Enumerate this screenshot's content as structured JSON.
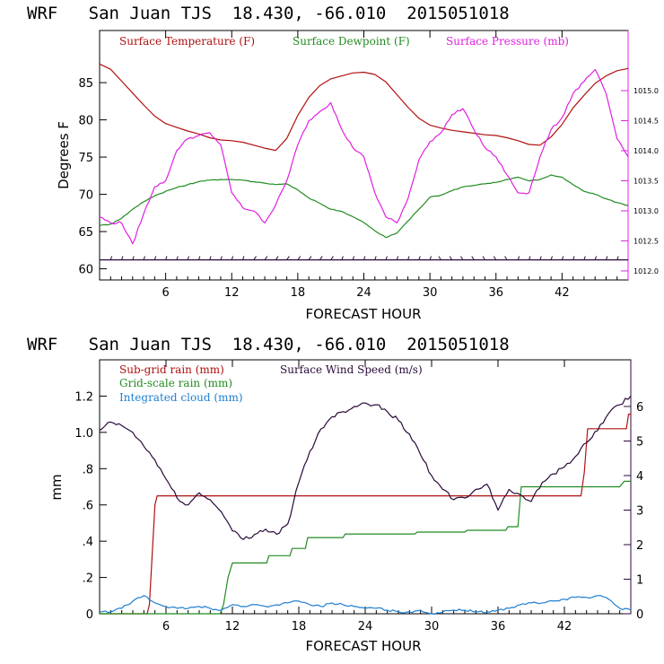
{
  "chart_data": [
    {
      "type": "line",
      "title": "WRF   San Juan TJS  18.430, -66.010  2015051018",
      "xlabel": "FORECAST HOUR",
      "ylabel": "Degrees F",
      "xlim": [
        0,
        48
      ],
      "xticks": [
        6,
        12,
        18,
        24,
        30,
        36,
        42
      ],
      "ylim": [
        58.5,
        92
      ],
      "yticks": [
        60,
        65,
        70,
        75,
        80,
        85
      ],
      "y2lim": [
        1011.85,
        1016.0
      ],
      "y2ticks": [
        "1012.0",
        "1012.5",
        "1013.0",
        "1013.5",
        "1014.0",
        "1014.5",
        "1015.0"
      ],
      "legend_placement": "top",
      "series": [
        {
          "name": "Surface Temperature (F)",
          "color": "#b01010",
          "axis": "left",
          "x": [
            0,
            1,
            2,
            3,
            4,
            5,
            6,
            7,
            8,
            9,
            10,
            11,
            12,
            13,
            14,
            15,
            16,
            17,
            18,
            19,
            20,
            21,
            22,
            23,
            24,
            25,
            26,
            27,
            28,
            29,
            30,
            31,
            32,
            33,
            34,
            35,
            36,
            37,
            38,
            39,
            40,
            41,
            42,
            43,
            44,
            45,
            46,
            47,
            48
          ],
          "y": [
            87.5,
            86.8,
            85.2,
            83.6,
            82.0,
            80.5,
            79.5,
            79.0,
            78.5,
            78.1,
            77.6,
            77.3,
            77.2,
            77.0,
            76.6,
            76.2,
            75.9,
            77.5,
            80.6,
            83.0,
            84.6,
            85.5,
            85.9,
            86.3,
            86.4,
            86.1,
            85.1,
            83.4,
            81.7,
            80.2,
            79.3,
            78.9,
            78.6,
            78.4,
            78.2,
            78.0,
            77.9,
            77.6,
            77.2,
            76.7,
            76.6,
            77.7,
            79.4,
            81.6,
            83.3,
            84.9,
            85.9,
            86.6,
            86.9
          ]
        },
        {
          "name": "Surface Dewpoint (F)",
          "color": "#228b22",
          "axis": "left",
          "x": [
            0,
            1,
            2,
            3,
            4,
            5,
            6,
            7,
            8,
            9,
            10,
            11,
            12,
            13,
            14,
            15,
            16,
            17,
            18,
            19,
            20,
            21,
            22,
            23,
            24,
            25,
            26,
            27,
            28,
            29,
            30,
            31,
            32,
            33,
            34,
            35,
            36,
            37,
            38,
            39,
            40,
            41,
            42,
            43,
            44,
            45,
            46,
            47,
            48
          ],
          "y": [
            65.8,
            66.0,
            66.8,
            68.0,
            69.0,
            69.8,
            70.4,
            70.9,
            71.3,
            71.7,
            71.9,
            72.0,
            72.0,
            71.9,
            71.7,
            71.5,
            71.3,
            71.4,
            70.6,
            69.5,
            68.8,
            68.0,
            67.7,
            67.0,
            66.2,
            65.1,
            64.2,
            64.8,
            66.4,
            68.0,
            69.6,
            69.9,
            70.5,
            71.0,
            71.2,
            71.4,
            71.6,
            72.0,
            72.3,
            71.8,
            72.0,
            72.6,
            72.3,
            71.3,
            70.4,
            70.0,
            69.4,
            68.9,
            68.5
          ]
        },
        {
          "name": "Surface Pressure (mb)",
          "color": "#e020e0",
          "axis": "right",
          "x": [
            0,
            1,
            2,
            3,
            4,
            5,
            6,
            7,
            8,
            9,
            10,
            11,
            12,
            13,
            14,
            15,
            16,
            17,
            18,
            19,
            20,
            21,
            22,
            23,
            24,
            25,
            26,
            27,
            28,
            29,
            30,
            31,
            32,
            33,
            34,
            35,
            36,
            37,
            38,
            39,
            40,
            41,
            42,
            43,
            44,
            45,
            46,
            47,
            48
          ],
          "y": [
            1012.9,
            1012.8,
            1012.8,
            1012.45,
            1012.95,
            1013.4,
            1013.5,
            1014.0,
            1014.2,
            1014.25,
            1014.3,
            1014.1,
            1013.3,
            1013.05,
            1013.0,
            1012.8,
            1013.1,
            1013.5,
            1014.1,
            1014.5,
            1014.65,
            1014.8,
            1014.35,
            1014.05,
            1013.9,
            1013.3,
            1012.9,
            1012.8,
            1013.2,
            1013.85,
            1014.15,
            1014.3,
            1014.6,
            1014.7,
            1014.35,
            1014.05,
            1013.9,
            1013.6,
            1013.3,
            1013.3,
            1013.9,
            1014.35,
            1014.55,
            1014.95,
            1015.15,
            1015.35,
            1014.95,
            1014.2,
            1013.9
          ]
        },
        {
          "name": "wind barbs",
          "color": "#2a0a3a",
          "axis": "left",
          "x": [
            0,
            48
          ],
          "y": [
            61.2,
            61.2
          ]
        }
      ]
    },
    {
      "type": "line",
      "title": "WRF   San Juan TJS  18.430, -66.010  2015051018",
      "xlabel": "FORECAST HOUR",
      "ylabel": "mm",
      "xlim": [
        0,
        48
      ],
      "xticks": [
        6,
        12,
        18,
        24,
        30,
        36,
        42
      ],
      "ylim": [
        0,
        1.4
      ],
      "yticks": [
        "0",
        ".2",
        ".4",
        ".6",
        ".8",
        "1.0",
        "1.2"
      ],
      "y2lim": [
        0,
        7.35
      ],
      "y2ticks": [
        "0",
        "1",
        "2",
        "3",
        "4",
        "5",
        "6"
      ],
      "legend_placement": "top-left",
      "series": [
        {
          "name": "Sub-grid rain (mm)",
          "color": "#b01010",
          "axis": "left",
          "x": [
            0,
            4.3,
            4.5,
            5.0,
            5.2,
            43.5,
            43.8,
            44.1,
            47.6,
            47.8,
            48
          ],
          "y": [
            0,
            0,
            0.05,
            0.6,
            0.65,
            0.65,
            0.78,
            1.02,
            1.02,
            1.1,
            1.1
          ]
        },
        {
          "name": "Grid-scale rain (mm)",
          "color": "#228b22",
          "axis": "left",
          "x": [
            0,
            10.9,
            11.2,
            11.6,
            12.0,
            15.1,
            15.3,
            17.2,
            17.4,
            18.6,
            18.8,
            22.0,
            22.2,
            28.5,
            28.7,
            33.0,
            33.2,
            36.7,
            36.9,
            37.8,
            38.1,
            47.0,
            47.4,
            48
          ],
          "y": [
            0,
            0,
            0.05,
            0.2,
            0.28,
            0.28,
            0.32,
            0.32,
            0.36,
            0.36,
            0.42,
            0.42,
            0.44,
            0.44,
            0.45,
            0.45,
            0.46,
            0.46,
            0.48,
            0.48,
            0.7,
            0.7,
            0.73,
            0.73
          ]
        },
        {
          "name": "Integrated cloud (mm)",
          "color": "#1f7fd0",
          "axis": "left",
          "x": [
            0,
            1,
            2,
            3,
            4,
            5,
            6,
            7,
            8,
            9,
            10,
            11,
            12,
            13,
            14,
            15,
            16,
            17,
            18,
            19,
            20,
            21,
            22,
            23,
            24,
            25,
            26,
            27,
            28,
            29,
            30,
            31,
            32,
            33,
            34,
            35,
            36,
            37,
            38,
            39,
            40,
            41,
            42,
            43,
            44,
            45,
            46,
            47,
            48
          ],
          "y": [
            0.01,
            0.01,
            0.03,
            0.07,
            0.1,
            0.06,
            0.04,
            0.03,
            0.03,
            0.04,
            0.03,
            0.02,
            0.05,
            0.04,
            0.05,
            0.04,
            0.05,
            0.06,
            0.07,
            0.05,
            0.04,
            0.06,
            0.05,
            0.04,
            0.03,
            0.03,
            0.02,
            0.01,
            0.01,
            0.02,
            0.0,
            0.01,
            0.02,
            0.02,
            0.01,
            0.01,
            0.02,
            0.03,
            0.05,
            0.06,
            0.06,
            0.07,
            0.08,
            0.09,
            0.09,
            0.1,
            0.08,
            0.03,
            0.02
          ]
        },
        {
          "name": "Surface Wind Speed (m/s)",
          "color": "#2a0a3a",
          "axis": "right",
          "x": [
            0,
            1,
            2,
            3,
            4,
            5,
            6,
            7,
            8,
            9,
            10,
            11,
            12,
            13,
            14,
            15,
            16,
            17,
            18,
            19,
            20,
            21,
            22,
            23,
            24,
            25,
            26,
            27,
            28,
            29,
            30,
            31,
            32,
            33,
            34,
            35,
            36,
            37,
            38,
            39,
            40,
            41,
            42,
            43,
            44,
            45,
            46,
            47,
            48
          ],
          "y": [
            5.3,
            5.55,
            5.45,
            5.25,
            4.85,
            4.45,
            3.9,
            3.35,
            3.15,
            3.5,
            3.3,
            2.95,
            2.4,
            2.15,
            2.3,
            2.45,
            2.3,
            2.6,
            3.8,
            4.7,
            5.35,
            5.7,
            5.85,
            6.0,
            6.1,
            6.05,
            5.85,
            5.6,
            5.2,
            4.6,
            4.0,
            3.6,
            3.3,
            3.35,
            3.6,
            3.75,
            3.0,
            3.6,
            3.45,
            3.25,
            3.8,
            4.05,
            4.25,
            4.55,
            4.95,
            5.3,
            5.8,
            6.05,
            6.3
          ]
        }
      ]
    }
  ]
}
